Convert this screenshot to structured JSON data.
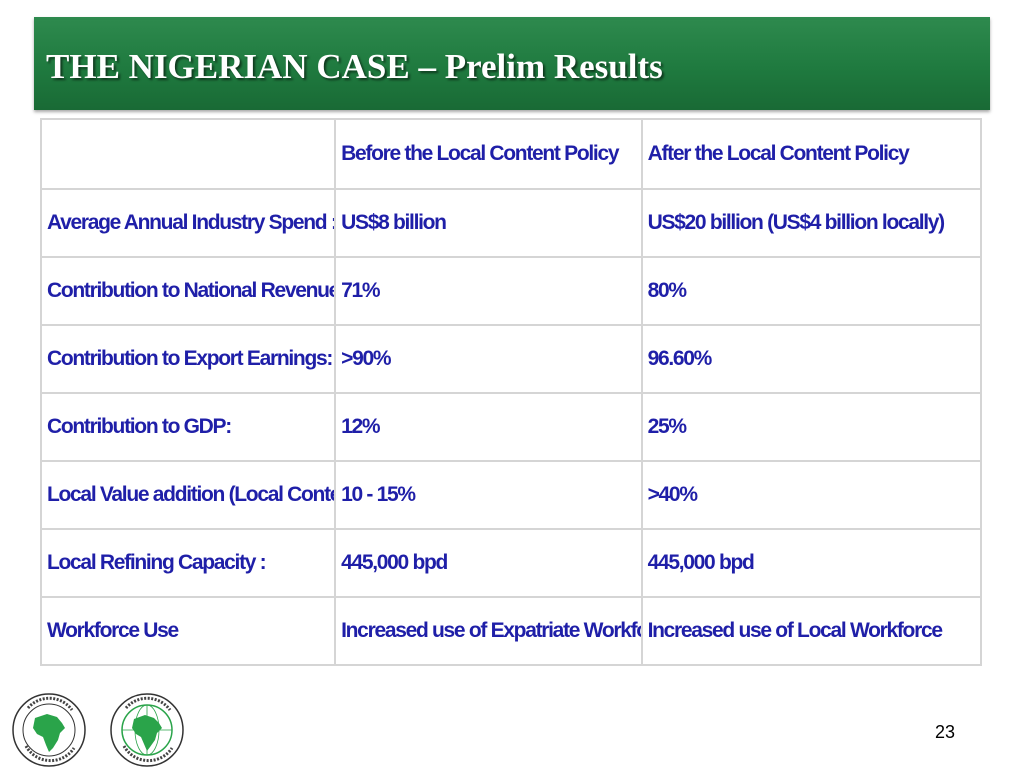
{
  "slide": {
    "title": "THE NIGERIAN CASE – Prelim Results",
    "page_number": "23"
  },
  "table": {
    "headers": [
      "",
      "Before the Local Content Policy",
      "After the Local Content Policy"
    ],
    "rows": [
      [
        "Average Annual Industry Spend :",
        "US$8 billion",
        "US$20 billion (US$4 billion locally)"
      ],
      [
        "Contribution to National Revenue :",
        "71%",
        "80%"
      ],
      [
        "Contribution to Export Earnings:",
        ">90%",
        "96.60%"
      ],
      [
        "Contribution to GDP:",
        "12%",
        "25%"
      ],
      [
        "Local Value addition (Local Content):",
        "10 - 15%",
        ">40%"
      ],
      [
        "Local Refining Capacity :",
        "445,000 bpd",
        "445,000 bpd"
      ],
      [
        "Workforce Use",
        "Increased use of Expatriate Workforce",
        "Increased use of Local Workforce"
      ]
    ]
  },
  "logos": {
    "left": {
      "ring_text": "BANQUE AFRICAINE DE DEVELOPPEMENT • AFRICAN DEVELOPMENT BANK",
      "icon": "africa-map-icon"
    },
    "right": {
      "ring_text": "AFRICAN DEVELOPMENT FUND • FONDS AFRICAIN DE DEVELOPPEMENT",
      "icon": "africa-map-icon"
    }
  },
  "colors": {
    "title_bar": "#1f7a3f",
    "table_text": "#1f1fa8",
    "border": "#d5d5d5"
  }
}
